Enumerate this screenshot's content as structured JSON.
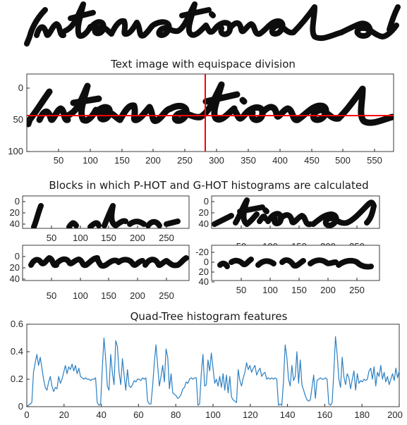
{
  "header_image": {
    "word": "International"
  },
  "panels": [
    {
      "id": "equispace",
      "title": "Text image with equispace division",
      "x_ticks": [
        50,
        100,
        150,
        200,
        250,
        300,
        350,
        400,
        450,
        500,
        550
      ],
      "y_ticks": [
        0,
        50,
        100
      ],
      "xlim": [
        0,
        580
      ],
      "ylim": [
        -10,
        100
      ],
      "division_color": "#ff0000",
      "division_x": 290,
      "division_y": 45
    },
    {
      "id": "blocks",
      "title": "Blocks in which P-HOT and G-HOT histograms are calculated",
      "blocks": [
        {
          "id": "block-top-left",
          "x_ticks": [
            50,
            100,
            150,
            200,
            250
          ],
          "y_ticks": [
            0,
            20,
            40
          ],
          "xlim": [
            0,
            290
          ],
          "ylim": [
            -10,
            45
          ]
        },
        {
          "id": "block-top-right",
          "x_ticks": [
            50,
            100,
            150,
            200,
            250
          ],
          "y_ticks": [
            0,
            20,
            40
          ],
          "xlim": [
            0,
            290
          ],
          "ylim": [
            -10,
            45
          ]
        },
        {
          "id": "block-bottom-left",
          "x_ticks": [
            50,
            100,
            150,
            200,
            250
          ],
          "y_ticks": [
            0,
            20,
            40
          ],
          "xlim": [
            0,
            290
          ],
          "ylim": [
            -10,
            48
          ]
        },
        {
          "id": "block-bottom-right",
          "x_ticks": [
            50,
            100,
            150,
            200,
            250
          ],
          "y_ticks": [
            -20,
            0,
            20,
            40
          ],
          "xlim": [
            0,
            290
          ],
          "ylim": [
            -22,
            48
          ]
        }
      ]
    }
  ],
  "chart_data": {
    "type": "line",
    "title": "Quad-Tree histogram features",
    "xlabel": "",
    "ylabel": "",
    "xlim": [
      0,
      200
    ],
    "ylim": [
      0,
      0.6
    ],
    "x_ticks": [
      0,
      20,
      40,
      60,
      80,
      100,
      120,
      140,
      160,
      180,
      200
    ],
    "y_ticks": [
      0,
      0.2,
      0.4,
      0.6
    ],
    "grid": false,
    "series_color": "#2c7fc1",
    "series": [
      {
        "values": [
          0.0,
          0.01,
          0.02,
          0.03,
          0.25,
          0.32,
          0.38,
          0.3,
          0.36,
          0.28,
          0.2,
          0.14,
          0.12,
          0.18,
          0.22,
          0.15,
          0.11,
          0.14,
          0.13,
          0.22,
          0.17,
          0.2,
          0.25,
          0.3,
          0.24,
          0.29,
          0.27,
          0.31,
          0.26,
          0.3,
          0.24,
          0.28,
          0.22,
          0.21,
          0.2,
          0.21,
          0.2,
          0.2,
          0.19,
          0.2,
          0.2,
          0.21,
          0.03,
          0.01,
          0.02,
          0.28,
          0.5,
          0.35,
          0.15,
          0.12,
          0.38,
          0.25,
          0.16,
          0.48,
          0.44,
          0.25,
          0.16,
          0.35,
          0.23,
          0.12,
          0.27,
          0.15,
          0.14,
          0.16,
          0.19,
          0.18,
          0.2,
          0.2,
          0.19,
          0.21,
          0.2,
          0.21,
          0.04,
          0.02,
          0.02,
          0.15,
          0.32,
          0.45,
          0.3,
          0.15,
          0.22,
          0.3,
          0.18,
          0.42,
          0.36,
          0.13,
          0.24,
          0.1,
          0.09,
          0.08,
          0.06,
          0.07,
          0.09,
          0.13,
          0.14,
          0.18,
          0.17,
          0.2,
          0.21,
          0.2,
          0.21,
          0.21,
          0.01,
          0.02,
          0.24,
          0.38,
          0.15,
          0.16,
          0.34,
          0.26,
          0.39,
          0.28,
          0.17,
          0.2,
          0.15,
          0.22,
          0.14,
          0.24,
          0.12,
          0.23,
          0.1,
          0.22,
          0.07,
          0.05,
          0.04,
          0.03,
          0.27,
          0.19,
          0.15,
          0.21,
          0.25,
          0.32,
          0.27,
          0.3,
          0.25,
          0.28,
          0.3,
          0.23,
          0.26,
          0.28,
          0.22,
          0.24,
          0.25,
          0.2,
          0.21,
          0.2,
          0.21,
          0.2,
          0.21,
          0.2,
          0.01,
          0.02,
          0.01,
          0.18,
          0.45,
          0.36,
          0.2,
          0.15,
          0.3,
          0.19,
          0.22,
          0.4,
          0.17,
          0.34,
          0.16,
          0.12,
          0.08,
          0.05,
          0.04,
          0.05,
          0.14,
          0.23,
          0.06,
          0.19,
          0.2,
          0.21,
          0.2,
          0.2,
          0.21,
          0.2,
          0.02,
          0.01,
          0.03,
          0.25,
          0.51,
          0.38,
          0.2,
          0.14,
          0.36,
          0.22,
          0.16,
          0.24,
          0.21,
          0.13,
          0.2,
          0.26,
          0.12,
          0.24,
          0.17,
          0.19,
          0.18,
          0.2,
          0.19,
          0.2,
          0.26,
          0.28,
          0.2,
          0.29,
          0.15,
          0.25,
          0.22,
          0.3,
          0.2,
          0.25,
          0.18,
          0.22,
          0.16,
          0.2,
          0.24,
          0.19,
          0.28,
          0.21,
          0.26
        ]
      }
    ]
  }
}
